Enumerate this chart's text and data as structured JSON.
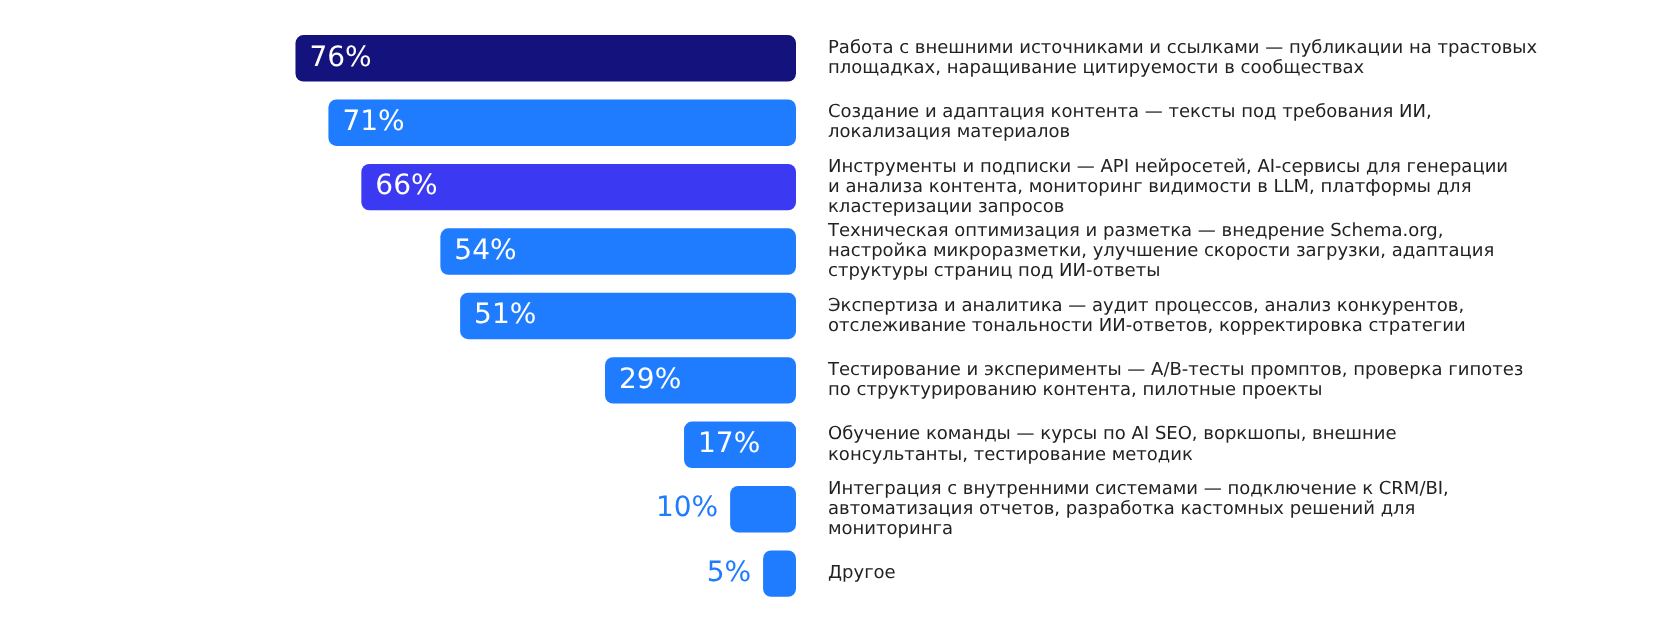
{
  "chart_data": {
    "type": "bar",
    "orientation": "horizontal",
    "tick_labels": "y",
    "grid": false,
    "legend": false,
    "categories": [
      "Работа с внешними источниками и ссылками — публикации на трастовых площадках, наращивание цитируемости в сообществах",
      "Создание и адаптация контента — тексты под требования ИИ, локализация материалов",
      "Инструменты и подписки — API нейросетей, AI-сервисы для генерации и анализа контента, мониторинг видимости в LLM, платформы для кластеризации запросов",
      "Техническая оптимизация и разметка — внедрение Schema.org, настройка микроразметки, улучшение скорости загрузки, адаптация структуры страниц под ИИ-ответы",
      "Экспертиза и аналитика — аудит процессов, анализ конкурентов, отслеживание тональности ИИ-ответов, корректировка стратегии",
      "Тестирование и эксперименты — A/B-тесты промптов, проверка гипотез по структурированию контента, пилотные проекты",
      "Обучение команды — курсы по AI SEO, воркшопы, внешние консультанты, тестирование методик",
      "Интеграция с внутренними системами — подключение к CRM/BI, автоматизация отчетов, разработка кастомных решений для мониторинга",
      "Другое"
    ],
    "values": [
      76,
      71,
      66,
      54,
      51,
      29,
      17,
      10,
      5
    ],
    "value_labels": [
      "76%",
      "71%",
      "66%",
      "54%",
      "51%",
      "29%",
      "17%",
      "10%",
      "5%"
    ],
    "colors": [
      "#14137e",
      "#1f7cff",
      "#3b3af2",
      "#1f7cff",
      "#1f7cff",
      "#1f7cff",
      "#1f7cff",
      "#1f7cff",
      "#1f7cff"
    ]
  }
}
